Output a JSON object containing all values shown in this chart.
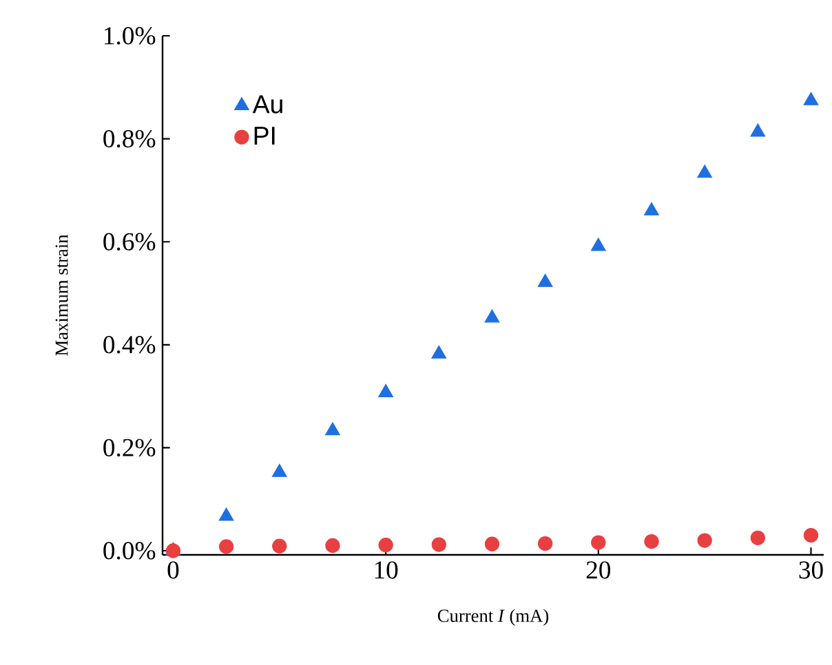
{
  "chart_data": {
    "type": "scatter",
    "xlabel": "Current *I* (mA)",
    "ylabel": "Maximum strain",
    "x": [
      0,
      2.5,
      5,
      7.5,
      10,
      12.5,
      15,
      17.5,
      20,
      22.5,
      25,
      27.5,
      30
    ],
    "series": [
      {
        "name": "Au",
        "color": "#1f6fdf",
        "marker": "triangle",
        "values": [
          0,
          0.067,
          0.152,
          0.233,
          0.307,
          0.382,
          0.452,
          0.521,
          0.591,
          0.66,
          0.733,
          0.813,
          0.874
        ]
      },
      {
        "name": "PI",
        "color": "#e84040",
        "marker": "circle",
        "values": [
          0,
          0.008,
          0.009,
          0.01,
          0.011,
          0.012,
          0.013,
          0.014,
          0.016,
          0.018,
          0.02,
          0.025,
          0.03
        ]
      }
    ],
    "xlim": [
      -0.5,
      30.6
    ],
    "ylim": [
      -0.008,
      1.0
    ],
    "xticks": [
      0,
      10,
      20,
      30
    ],
    "yticks": [
      {
        "value": 0,
        "label": "0.0%"
      },
      {
        "value": 0.2,
        "label": "0.2%"
      },
      {
        "value": 0.4,
        "label": "0.4%"
      },
      {
        "value": 0.6,
        "label": "0.6%"
      },
      {
        "value": 0.8,
        "label": "0.8%"
      },
      {
        "value": 1.0,
        "label": "1.0%"
      }
    ],
    "legend": "top left",
    "grid": false
  }
}
